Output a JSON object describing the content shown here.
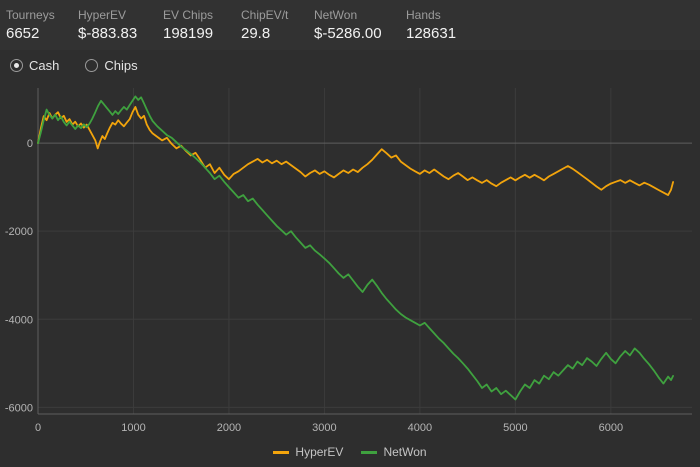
{
  "stats": [
    {
      "label": "Tourneys",
      "value": "6652"
    },
    {
      "label": "HyperEV",
      "value": "$-883.83"
    },
    {
      "label": "EV Chips",
      "value": "198199"
    },
    {
      "label": "ChipEV/t",
      "value": "29.8"
    },
    {
      "label": "NetWon",
      "value": "$-5286.00"
    },
    {
      "label": "Hands",
      "value": "128631"
    }
  ],
  "view_toggle": {
    "options": [
      {
        "label": "Cash",
        "selected": true
      },
      {
        "label": "Chips",
        "selected": false
      }
    ]
  },
  "colors": {
    "background": "#2e2e2e",
    "grid": "#3c3c3c",
    "axis_line": "#5f5f5f",
    "axis_text": "#b5b5b5",
    "hyperev": "#f2a40c",
    "netwon": "#3fa13f"
  },
  "chart_data": {
    "type": "line",
    "title": "",
    "xlabel": "",
    "ylabel": "",
    "xlim": [
      0,
      6850
    ],
    "ylim": [
      -6150,
      1250
    ],
    "xticks": [
      0,
      1000,
      2000,
      3000,
      4000,
      5000,
      6000
    ],
    "yticks": [
      0,
      -2000,
      -4000,
      -6000
    ],
    "grid": true,
    "legend_position": "bottom-center",
    "series": [
      {
        "name": "HyperEV",
        "color": "#f2a40c",
        "points": [
          [
            0,
            0
          ],
          [
            30,
            340
          ],
          [
            60,
            610
          ],
          [
            90,
            520
          ],
          [
            120,
            680
          ],
          [
            150,
            560
          ],
          [
            180,
            645
          ],
          [
            210,
            700
          ],
          [
            240,
            565
          ],
          [
            270,
            620
          ],
          [
            300,
            480
          ],
          [
            330,
            545
          ],
          [
            360,
            420
          ],
          [
            390,
            485
          ],
          [
            420,
            380
          ],
          [
            450,
            445
          ],
          [
            480,
            350
          ],
          [
            510,
            420
          ],
          [
            540,
            300
          ],
          [
            570,
            180
          ],
          [
            600,
            60
          ],
          [
            625,
            -120
          ],
          [
            650,
            40
          ],
          [
            675,
            160
          ],
          [
            700,
            90
          ],
          [
            725,
            220
          ],
          [
            750,
            340
          ],
          [
            780,
            460
          ],
          [
            810,
            420
          ],
          [
            840,
            520
          ],
          [
            870,
            440
          ],
          [
            900,
            380
          ],
          [
            930,
            465
          ],
          [
            960,
            545
          ],
          [
            990,
            700
          ],
          [
            1020,
            820
          ],
          [
            1050,
            645
          ],
          [
            1080,
            560
          ],
          [
            1110,
            620
          ],
          [
            1140,
            420
          ],
          [
            1170,
            300
          ],
          [
            1200,
            220
          ],
          [
            1250,
            140
          ],
          [
            1300,
            60
          ],
          [
            1350,
            120
          ],
          [
            1400,
            -20
          ],
          [
            1450,
            -120
          ],
          [
            1500,
            -60
          ],
          [
            1550,
            -180
          ],
          [
            1600,
            -280
          ],
          [
            1650,
            -220
          ],
          [
            1700,
            -380
          ],
          [
            1750,
            -560
          ],
          [
            1800,
            -480
          ],
          [
            1850,
            -680
          ],
          [
            1900,
            -560
          ],
          [
            1950,
            -720
          ],
          [
            2000,
            -820
          ],
          [
            2050,
            -700
          ],
          [
            2100,
            -640
          ],
          [
            2150,
            -560
          ],
          [
            2200,
            -480
          ],
          [
            2250,
            -420
          ],
          [
            2300,
            -360
          ],
          [
            2350,
            -440
          ],
          [
            2400,
            -380
          ],
          [
            2450,
            -460
          ],
          [
            2500,
            -400
          ],
          [
            2550,
            -480
          ],
          [
            2600,
            -420
          ],
          [
            2650,
            -500
          ],
          [
            2700,
            -580
          ],
          [
            2750,
            -660
          ],
          [
            2800,
            -760
          ],
          [
            2850,
            -680
          ],
          [
            2900,
            -620
          ],
          [
            2950,
            -700
          ],
          [
            3000,
            -640
          ],
          [
            3050,
            -720
          ],
          [
            3100,
            -780
          ],
          [
            3150,
            -700
          ],
          [
            3200,
            -620
          ],
          [
            3250,
            -680
          ],
          [
            3300,
            -600
          ],
          [
            3350,
            -660
          ],
          [
            3400,
            -560
          ],
          [
            3450,
            -480
          ],
          [
            3500,
            -380
          ],
          [
            3550,
            -260
          ],
          [
            3600,
            -140
          ],
          [
            3650,
            -230
          ],
          [
            3700,
            -330
          ],
          [
            3750,
            -280
          ],
          [
            3800,
            -420
          ],
          [
            3850,
            -500
          ],
          [
            3900,
            -580
          ],
          [
            3950,
            -640
          ],
          [
            4000,
            -700
          ],
          [
            4050,
            -620
          ],
          [
            4100,
            -680
          ],
          [
            4150,
            -600
          ],
          [
            4200,
            -680
          ],
          [
            4250,
            -760
          ],
          [
            4300,
            -820
          ],
          [
            4350,
            -740
          ],
          [
            4400,
            -680
          ],
          [
            4450,
            -760
          ],
          [
            4500,
            -840
          ],
          [
            4550,
            -780
          ],
          [
            4600,
            -845
          ],
          [
            4650,
            -905
          ],
          [
            4700,
            -840
          ],
          [
            4750,
            -920
          ],
          [
            4800,
            -980
          ],
          [
            4850,
            -900
          ],
          [
            4900,
            -840
          ],
          [
            4950,
            -780
          ],
          [
            5000,
            -845
          ],
          [
            5050,
            -780
          ],
          [
            5100,
            -720
          ],
          [
            5150,
            -785
          ],
          [
            5200,
            -720
          ],
          [
            5250,
            -780
          ],
          [
            5300,
            -845
          ],
          [
            5350,
            -760
          ],
          [
            5400,
            -700
          ],
          [
            5450,
            -640
          ],
          [
            5500,
            -580
          ],
          [
            5550,
            -520
          ],
          [
            5600,
            -585
          ],
          [
            5650,
            -660
          ],
          [
            5700,
            -740
          ],
          [
            5750,
            -820
          ],
          [
            5800,
            -905
          ],
          [
            5850,
            -985
          ],
          [
            5900,
            -1060
          ],
          [
            5950,
            -980
          ],
          [
            6000,
            -920
          ],
          [
            6050,
            -880
          ],
          [
            6100,
            -840
          ],
          [
            6150,
            -905
          ],
          [
            6200,
            -845
          ],
          [
            6250,
            -905
          ],
          [
            6300,
            -960
          ],
          [
            6350,
            -900
          ],
          [
            6400,
            -945
          ],
          [
            6450,
            -1005
          ],
          [
            6500,
            -1065
          ],
          [
            6550,
            -1125
          ],
          [
            6600,
            -1180
          ],
          [
            6630,
            -1060
          ],
          [
            6652,
            -884
          ]
        ]
      },
      {
        "name": "NetWon",
        "color": "#3fa13f",
        "points": [
          [
            0,
            0
          ],
          [
            30,
            250
          ],
          [
            60,
            520
          ],
          [
            90,
            760
          ],
          [
            120,
            640
          ],
          [
            150,
            560
          ],
          [
            180,
            645
          ],
          [
            210,
            520
          ],
          [
            240,
            600
          ],
          [
            270,
            480
          ],
          [
            300,
            400
          ],
          [
            330,
            485
          ],
          [
            360,
            400
          ],
          [
            390,
            320
          ],
          [
            420,
            400
          ],
          [
            450,
            340
          ],
          [
            480,
            425
          ],
          [
            510,
            360
          ],
          [
            540,
            445
          ],
          [
            570,
            560
          ],
          [
            600,
            700
          ],
          [
            630,
            845
          ],
          [
            660,
            960
          ],
          [
            690,
            880
          ],
          [
            720,
            800
          ],
          [
            750,
            720
          ],
          [
            780,
            640
          ],
          [
            810,
            725
          ],
          [
            840,
            660
          ],
          [
            870,
            745
          ],
          [
            900,
            820
          ],
          [
            930,
            760
          ],
          [
            960,
            865
          ],
          [
            990,
            960
          ],
          [
            1020,
            1060
          ],
          [
            1050,
            980
          ],
          [
            1080,
            1040
          ],
          [
            1110,
            900
          ],
          [
            1140,
            760
          ],
          [
            1170,
            620
          ],
          [
            1200,
            500
          ],
          [
            1250,
            380
          ],
          [
            1300,
            280
          ],
          [
            1350,
            180
          ],
          [
            1400,
            120
          ],
          [
            1450,
            20
          ],
          [
            1500,
            -80
          ],
          [
            1550,
            -160
          ],
          [
            1600,
            -245
          ],
          [
            1650,
            -340
          ],
          [
            1700,
            -440
          ],
          [
            1750,
            -560
          ],
          [
            1800,
            -680
          ],
          [
            1850,
            -820
          ],
          [
            1900,
            -740
          ],
          [
            1950,
            -880
          ],
          [
            2000,
            -1000
          ],
          [
            2050,
            -1120
          ],
          [
            2100,
            -1240
          ],
          [
            2150,
            -1180
          ],
          [
            2200,
            -1320
          ],
          [
            2250,
            -1260
          ],
          [
            2300,
            -1400
          ],
          [
            2350,
            -1520
          ],
          [
            2400,
            -1640
          ],
          [
            2450,
            -1760
          ],
          [
            2500,
            -1880
          ],
          [
            2550,
            -1980
          ],
          [
            2600,
            -2080
          ],
          [
            2650,
            -2000
          ],
          [
            2700,
            -2140
          ],
          [
            2750,
            -2260
          ],
          [
            2800,
            -2380
          ],
          [
            2850,
            -2320
          ],
          [
            2900,
            -2440
          ],
          [
            2950,
            -2525
          ],
          [
            3000,
            -2620
          ],
          [
            3050,
            -2720
          ],
          [
            3100,
            -2840
          ],
          [
            3150,
            -2960
          ],
          [
            3200,
            -3060
          ],
          [
            3250,
            -2980
          ],
          [
            3300,
            -3120
          ],
          [
            3350,
            -3260
          ],
          [
            3400,
            -3380
          ],
          [
            3450,
            -3220
          ],
          [
            3500,
            -3100
          ],
          [
            3550,
            -3240
          ],
          [
            3600,
            -3400
          ],
          [
            3650,
            -3540
          ],
          [
            3700,
            -3660
          ],
          [
            3750,
            -3780
          ],
          [
            3800,
            -3880
          ],
          [
            3850,
            -3960
          ],
          [
            3900,
            -4020
          ],
          [
            3950,
            -4080
          ],
          [
            4000,
            -4140
          ],
          [
            4050,
            -4080
          ],
          [
            4100,
            -4200
          ],
          [
            4150,
            -4320
          ],
          [
            4200,
            -4440
          ],
          [
            4250,
            -4540
          ],
          [
            4300,
            -4660
          ],
          [
            4350,
            -4780
          ],
          [
            4400,
            -4880
          ],
          [
            4450,
            -5000
          ],
          [
            4500,
            -5120
          ],
          [
            4550,
            -5260
          ],
          [
            4600,
            -5400
          ],
          [
            4650,
            -5560
          ],
          [
            4700,
            -5480
          ],
          [
            4750,
            -5640
          ],
          [
            4800,
            -5560
          ],
          [
            4850,
            -5700
          ],
          [
            4900,
            -5620
          ],
          [
            4950,
            -5720
          ],
          [
            5000,
            -5820
          ],
          [
            5050,
            -5640
          ],
          [
            5100,
            -5480
          ],
          [
            5150,
            -5560
          ],
          [
            5200,
            -5380
          ],
          [
            5250,
            -5460
          ],
          [
            5300,
            -5280
          ],
          [
            5350,
            -5360
          ],
          [
            5400,
            -5200
          ],
          [
            5450,
            -5280
          ],
          [
            5500,
            -5160
          ],
          [
            5550,
            -5040
          ],
          [
            5600,
            -5120
          ],
          [
            5650,
            -4960
          ],
          [
            5700,
            -5040
          ],
          [
            5750,
            -4880
          ],
          [
            5800,
            -4960
          ],
          [
            5850,
            -5060
          ],
          [
            5900,
            -4900
          ],
          [
            5950,
            -4760
          ],
          [
            6000,
            -4900
          ],
          [
            6050,
            -5000
          ],
          [
            6100,
            -4840
          ],
          [
            6150,
            -4720
          ],
          [
            6200,
            -4820
          ],
          [
            6250,
            -4660
          ],
          [
            6300,
            -4760
          ],
          [
            6350,
            -4900
          ],
          [
            6400,
            -5020
          ],
          [
            6450,
            -5160
          ],
          [
            6500,
            -5320
          ],
          [
            6550,
            -5460
          ],
          [
            6600,
            -5300
          ],
          [
            6630,
            -5380
          ],
          [
            6652,
            -5286
          ]
        ]
      }
    ]
  }
}
